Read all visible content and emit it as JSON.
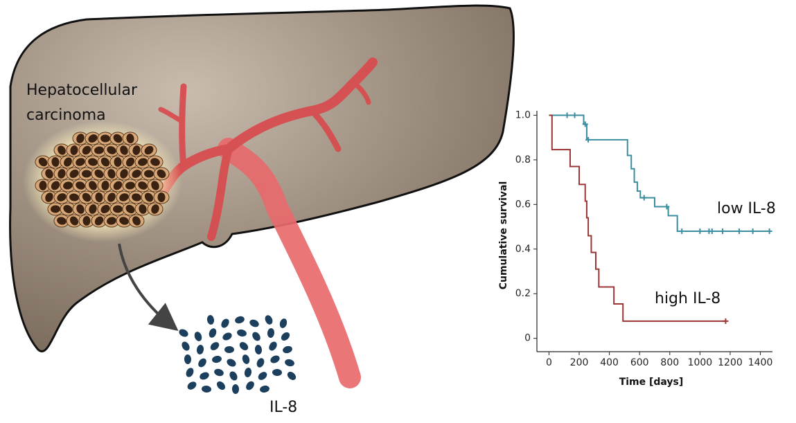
{
  "illustration": {
    "tumor_label": [
      "Hepatocellular",
      "carcinoma"
    ],
    "secreted_label": "IL-8"
  },
  "chart_data": {
    "type": "step",
    "x_label": "Time [days]",
    "y_label": "Cumulative survival",
    "xlim": [
      -80,
      1480
    ],
    "xticks": [
      0,
      200,
      400,
      600,
      800,
      1000,
      1200,
      1400
    ],
    "ylim": [
      -0.06,
      1.02
    ],
    "yticks": [
      0,
      0.2,
      0.4,
      0.6,
      0.8,
      {
        "value": 1,
        "label": "1.0"
      }
    ],
    "series": [
      {
        "name": "low IL-8",
        "color": "#3b8ea0",
        "x": [
          0,
          230,
          250,
          520,
          545,
          565,
          585,
          605,
          700,
          790,
          850,
          1460
        ],
        "values": [
          1,
          0.96,
          0.89,
          0.82,
          0.76,
          0.7,
          0.66,
          0.63,
          0.59,
          0.55,
          0.48,
          0.48
        ],
        "censored_x": [
          120,
          170,
          240,
          260,
          630,
          780,
          880,
          1000,
          1060,
          1080,
          1150,
          1260,
          1350,
          1460
        ],
        "censored_values": [
          1,
          1,
          0.96,
          0.89,
          0.63,
          0.59,
          0.48,
          0.48,
          0.48,
          0.48,
          0.48,
          0.48,
          0.48,
          0.48
        ]
      },
      {
        "name": "high IL-8",
        "color": "#9b3535",
        "x": [
          0,
          20,
          140,
          200,
          240,
          250,
          260,
          280,
          310,
          330,
          430,
          490,
          1170
        ],
        "values": [
          1,
          0.846,
          0.77,
          0.69,
          0.615,
          0.54,
          0.46,
          0.385,
          0.31,
          0.23,
          0.154,
          0.077,
          0.077
        ],
        "censored_x": [
          1170
        ],
        "censored_values": [
          0.077
        ]
      }
    ]
  }
}
